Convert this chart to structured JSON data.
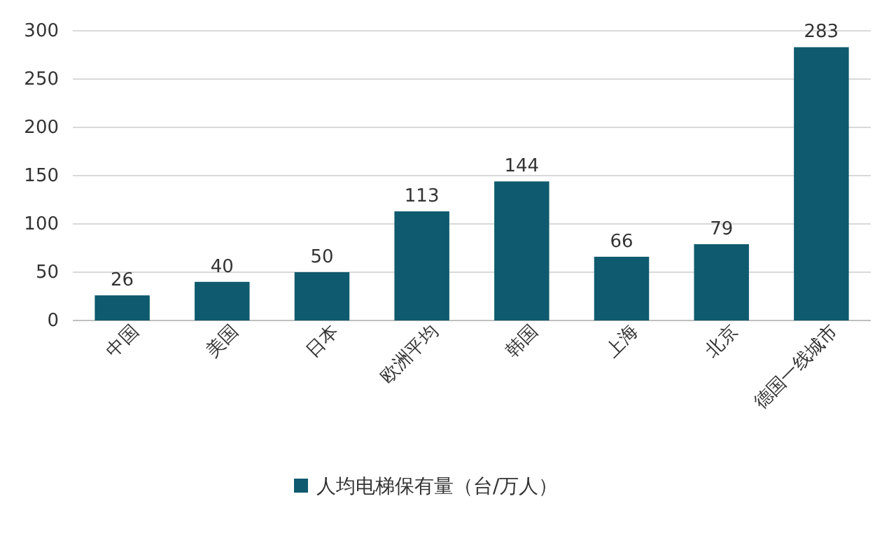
{
  "chart_data": {
    "type": "bar",
    "categories": [
      "中国",
      "美国",
      "日本",
      "欧洲平均",
      "韩国",
      "上海",
      "北京",
      "德国一线城市"
    ],
    "series": [
      {
        "name": "人均电梯保有量（台/万人）",
        "color": "#0f5a6e",
        "values": [
          26,
          40,
          50,
          113,
          144,
          66,
          79,
          283
        ]
      }
    ],
    "ylim": [
      0,
      300
    ],
    "yticks": [
      0,
      50,
      100,
      150,
      200,
      250,
      300
    ],
    "grid": "y",
    "legend": "bottom",
    "data_labels": true
  }
}
